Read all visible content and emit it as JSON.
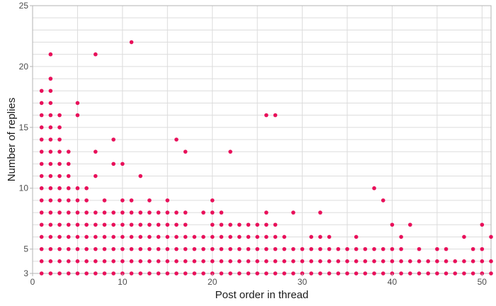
{
  "colors": {
    "point": "#e8105a",
    "grid": "#dcdcdc",
    "axis": "#b3b3b3",
    "background": "#ffffff"
  },
  "chart_data": {
    "type": "scatter",
    "title": "",
    "xlabel": "Post order in thread",
    "ylabel": "Number of replies",
    "xlim": [
      0,
      51
    ],
    "ylim": [
      3,
      25
    ],
    "x_ticks": [
      0,
      10,
      20,
      30,
      40,
      50
    ],
    "y_ticks": [
      3,
      5,
      10,
      15,
      20,
      25
    ],
    "grid": true,
    "columns": [
      {
        "x": 1,
        "y": [
          3,
          4,
          5,
          6,
          7,
          8,
          9,
          10,
          11,
          12,
          13,
          14,
          15,
          16,
          17,
          18
        ]
      },
      {
        "x": 2,
        "y": [
          3,
          4,
          5,
          6,
          7,
          8,
          9,
          10,
          11,
          12,
          13,
          14,
          15,
          16,
          17,
          18,
          19,
          21
        ]
      },
      {
        "x": 3,
        "y": [
          3,
          4,
          5,
          6,
          7,
          8,
          9,
          10,
          11,
          12,
          13,
          14,
          15,
          16
        ]
      },
      {
        "x": 4,
        "y": [
          3,
          4,
          5,
          6,
          7,
          8,
          9,
          10,
          11,
          12,
          13
        ]
      },
      {
        "x": 5,
        "y": [
          3,
          4,
          5,
          6,
          7,
          8,
          9,
          10,
          16,
          17
        ]
      },
      {
        "x": 6,
        "y": [
          3,
          4,
          5,
          6,
          7,
          8,
          9,
          10
        ]
      },
      {
        "x": 7,
        "y": [
          3,
          4,
          5,
          6,
          7,
          8,
          11,
          13,
          21
        ]
      },
      {
        "x": 8,
        "y": [
          3,
          4,
          5,
          6,
          7,
          8,
          9
        ]
      },
      {
        "x": 9,
        "y": [
          3,
          4,
          5,
          6,
          7,
          8,
          12,
          14
        ]
      },
      {
        "x": 10,
        "y": [
          3,
          4,
          5,
          6,
          7,
          8,
          9,
          12
        ]
      },
      {
        "x": 11,
        "y": [
          3,
          4,
          5,
          6,
          7,
          8,
          9,
          22
        ]
      },
      {
        "x": 12,
        "y": [
          3,
          4,
          5,
          6,
          7,
          8,
          11
        ]
      },
      {
        "x": 13,
        "y": [
          3,
          4,
          5,
          6,
          7,
          8,
          9
        ]
      },
      {
        "x": 14,
        "y": [
          3,
          4,
          5,
          6,
          7,
          8
        ]
      },
      {
        "x": 15,
        "y": [
          3,
          4,
          5,
          6,
          7,
          8,
          9
        ]
      },
      {
        "x": 16,
        "y": [
          3,
          4,
          5,
          6,
          7,
          8,
          14
        ]
      },
      {
        "x": 17,
        "y": [
          3,
          4,
          5,
          6,
          7,
          8,
          13
        ]
      },
      {
        "x": 18,
        "y": [
          3,
          4,
          5,
          6
        ]
      },
      {
        "x": 19,
        "y": [
          3,
          4,
          5,
          6,
          8
        ]
      },
      {
        "x": 20,
        "y": [
          3,
          4,
          5,
          6,
          7,
          8,
          9
        ]
      },
      {
        "x": 21,
        "y": [
          3,
          4,
          5,
          6,
          7,
          8
        ]
      },
      {
        "x": 22,
        "y": [
          3,
          4,
          5,
          6,
          7,
          13
        ]
      },
      {
        "x": 23,
        "y": [
          3,
          4,
          5,
          6,
          7
        ]
      },
      {
        "x": 24,
        "y": [
          3,
          4,
          5,
          6,
          7
        ]
      },
      {
        "x": 25,
        "y": [
          3,
          4,
          5,
          6,
          7
        ]
      },
      {
        "x": 26,
        "y": [
          3,
          4,
          5,
          6,
          7,
          8,
          16
        ]
      },
      {
        "x": 27,
        "y": [
          3,
          4,
          5,
          6,
          7,
          16
        ]
      },
      {
        "x": 28,
        "y": [
          3,
          4,
          5,
          6
        ]
      },
      {
        "x": 29,
        "y": [
          3,
          4,
          5,
          8
        ]
      },
      {
        "x": 30,
        "y": [
          3,
          4,
          5
        ]
      },
      {
        "x": 31,
        "y": [
          3,
          4,
          5,
          6
        ]
      },
      {
        "x": 32,
        "y": [
          3,
          4,
          5,
          6,
          8
        ]
      },
      {
        "x": 33,
        "y": [
          3,
          4,
          5,
          6
        ]
      },
      {
        "x": 34,
        "y": [
          3,
          4,
          5
        ]
      },
      {
        "x": 35,
        "y": [
          3,
          4,
          5
        ]
      },
      {
        "x": 36,
        "y": [
          3,
          4,
          5,
          6
        ]
      },
      {
        "x": 37,
        "y": [
          3,
          4,
          5
        ]
      },
      {
        "x": 38,
        "y": [
          3,
          4,
          5,
          10
        ]
      },
      {
        "x": 39,
        "y": [
          3,
          4,
          5,
          9
        ]
      },
      {
        "x": 40,
        "y": [
          3,
          4,
          5,
          7
        ]
      },
      {
        "x": 41,
        "y": [
          3,
          4,
          5,
          6
        ]
      },
      {
        "x": 42,
        "y": [
          3,
          4,
          7
        ]
      },
      {
        "x": 43,
        "y": [
          3,
          4,
          5
        ]
      },
      {
        "x": 44,
        "y": [
          3,
          4
        ]
      },
      {
        "x": 45,
        "y": [
          3,
          4,
          5
        ]
      },
      {
        "x": 46,
        "y": [
          3,
          4,
          5
        ]
      },
      {
        "x": 47,
        "y": [
          3,
          4
        ]
      },
      {
        "x": 48,
        "y": [
          3,
          4,
          6
        ]
      },
      {
        "x": 49,
        "y": [
          3,
          4,
          5
        ]
      },
      {
        "x": 50,
        "y": [
          3,
          4,
          5,
          7
        ]
      },
      {
        "x": 51,
        "y": [
          3,
          4,
          6
        ]
      }
    ]
  }
}
